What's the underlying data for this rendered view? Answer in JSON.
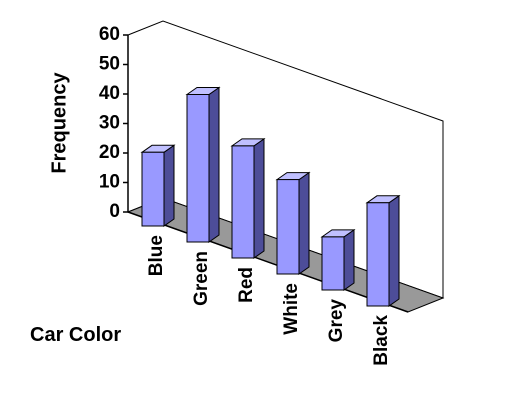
{
  "chart_data": {
    "type": "bar",
    "title": "",
    "xlabel": "Car Color",
    "ylabel": "Frequency",
    "categories": [
      "Blue",
      "Green",
      "Red",
      "White",
      "Grey",
      "Black"
    ],
    "values": [
      25,
      50,
      38,
      32,
      18,
      35
    ],
    "ylim": [
      0,
      60
    ],
    "yticks": [
      "0",
      "10",
      "20",
      "30",
      "40",
      "50",
      "60"
    ],
    "style": "3d-column",
    "grid": false,
    "legend": "none",
    "colors": {
      "bar_front": "#9999ff",
      "bar_side": "#4d4d99",
      "bar_top": "#c0c0ff",
      "floor": "#999999",
      "wall": "#ffffff",
      "axis": "#000000"
    }
  }
}
